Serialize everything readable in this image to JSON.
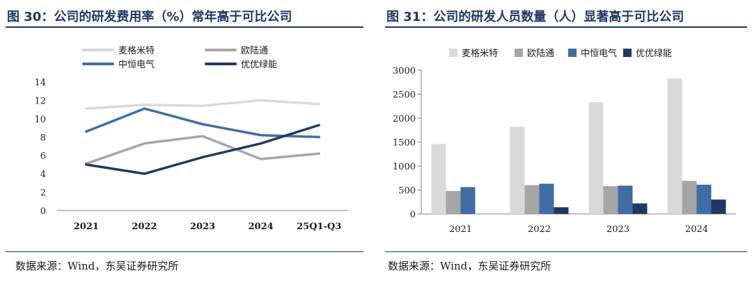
{
  "left": {
    "title": "图 30：公司的研发费用率（%）常年高于可比公司",
    "source": "数据来源：Wind，东吴证券研究所"
  },
  "right": {
    "title": "图 31：公司的研发人员数量（人）显著高于可比公司",
    "source": "数据来源：Wind，东吴证券研究所"
  },
  "colors": {
    "maige": "#d9d9d9",
    "ouluton": "#a6a6a6",
    "zhongheng": "#3f6da6",
    "youyou": "#1f3a60",
    "title": "#1f3864"
  },
  "chart_data": [
    {
      "type": "line",
      "categories": [
        "2021",
        "2022",
        "2023",
        "2024",
        "25Q1-Q3"
      ],
      "ylim": [
        0,
        14
      ],
      "yticks": [
        0,
        2,
        4,
        6,
        8,
        10,
        12,
        14
      ],
      "grid": false,
      "legend": "top",
      "series": [
        {
          "name": "麦格米特",
          "values": [
            11.1,
            11.5,
            11.4,
            12.0,
            11.6
          ]
        },
        {
          "name": "欧陆通",
          "values": [
            5.1,
            7.3,
            8.1,
            5.6,
            6.2
          ]
        },
        {
          "name": "中恒电气",
          "values": [
            8.6,
            11.1,
            9.4,
            8.2,
            8.0
          ]
        },
        {
          "name": "优优绿能",
          "values": [
            5.0,
            4.0,
            5.8,
            7.3,
            9.3
          ]
        }
      ]
    },
    {
      "type": "bar",
      "categories": [
        "2021",
        "2022",
        "2023",
        "2024"
      ],
      "ylim": [
        0,
        3000
      ],
      "yticks": [
        0,
        500,
        1000,
        1500,
        2000,
        2500,
        3000
      ],
      "grid": false,
      "legend": "top",
      "series": [
        {
          "name": "麦格米特",
          "values": [
            1460,
            1820,
            2330,
            2830
          ]
        },
        {
          "name": "欧陆通",
          "values": [
            480,
            600,
            580,
            690
          ]
        },
        {
          "name": "中恒电气",
          "values": [
            560,
            630,
            590,
            610
          ]
        },
        {
          "name": "优优绿能",
          "values": [
            null,
            140,
            220,
            300
          ]
        }
      ]
    }
  ]
}
